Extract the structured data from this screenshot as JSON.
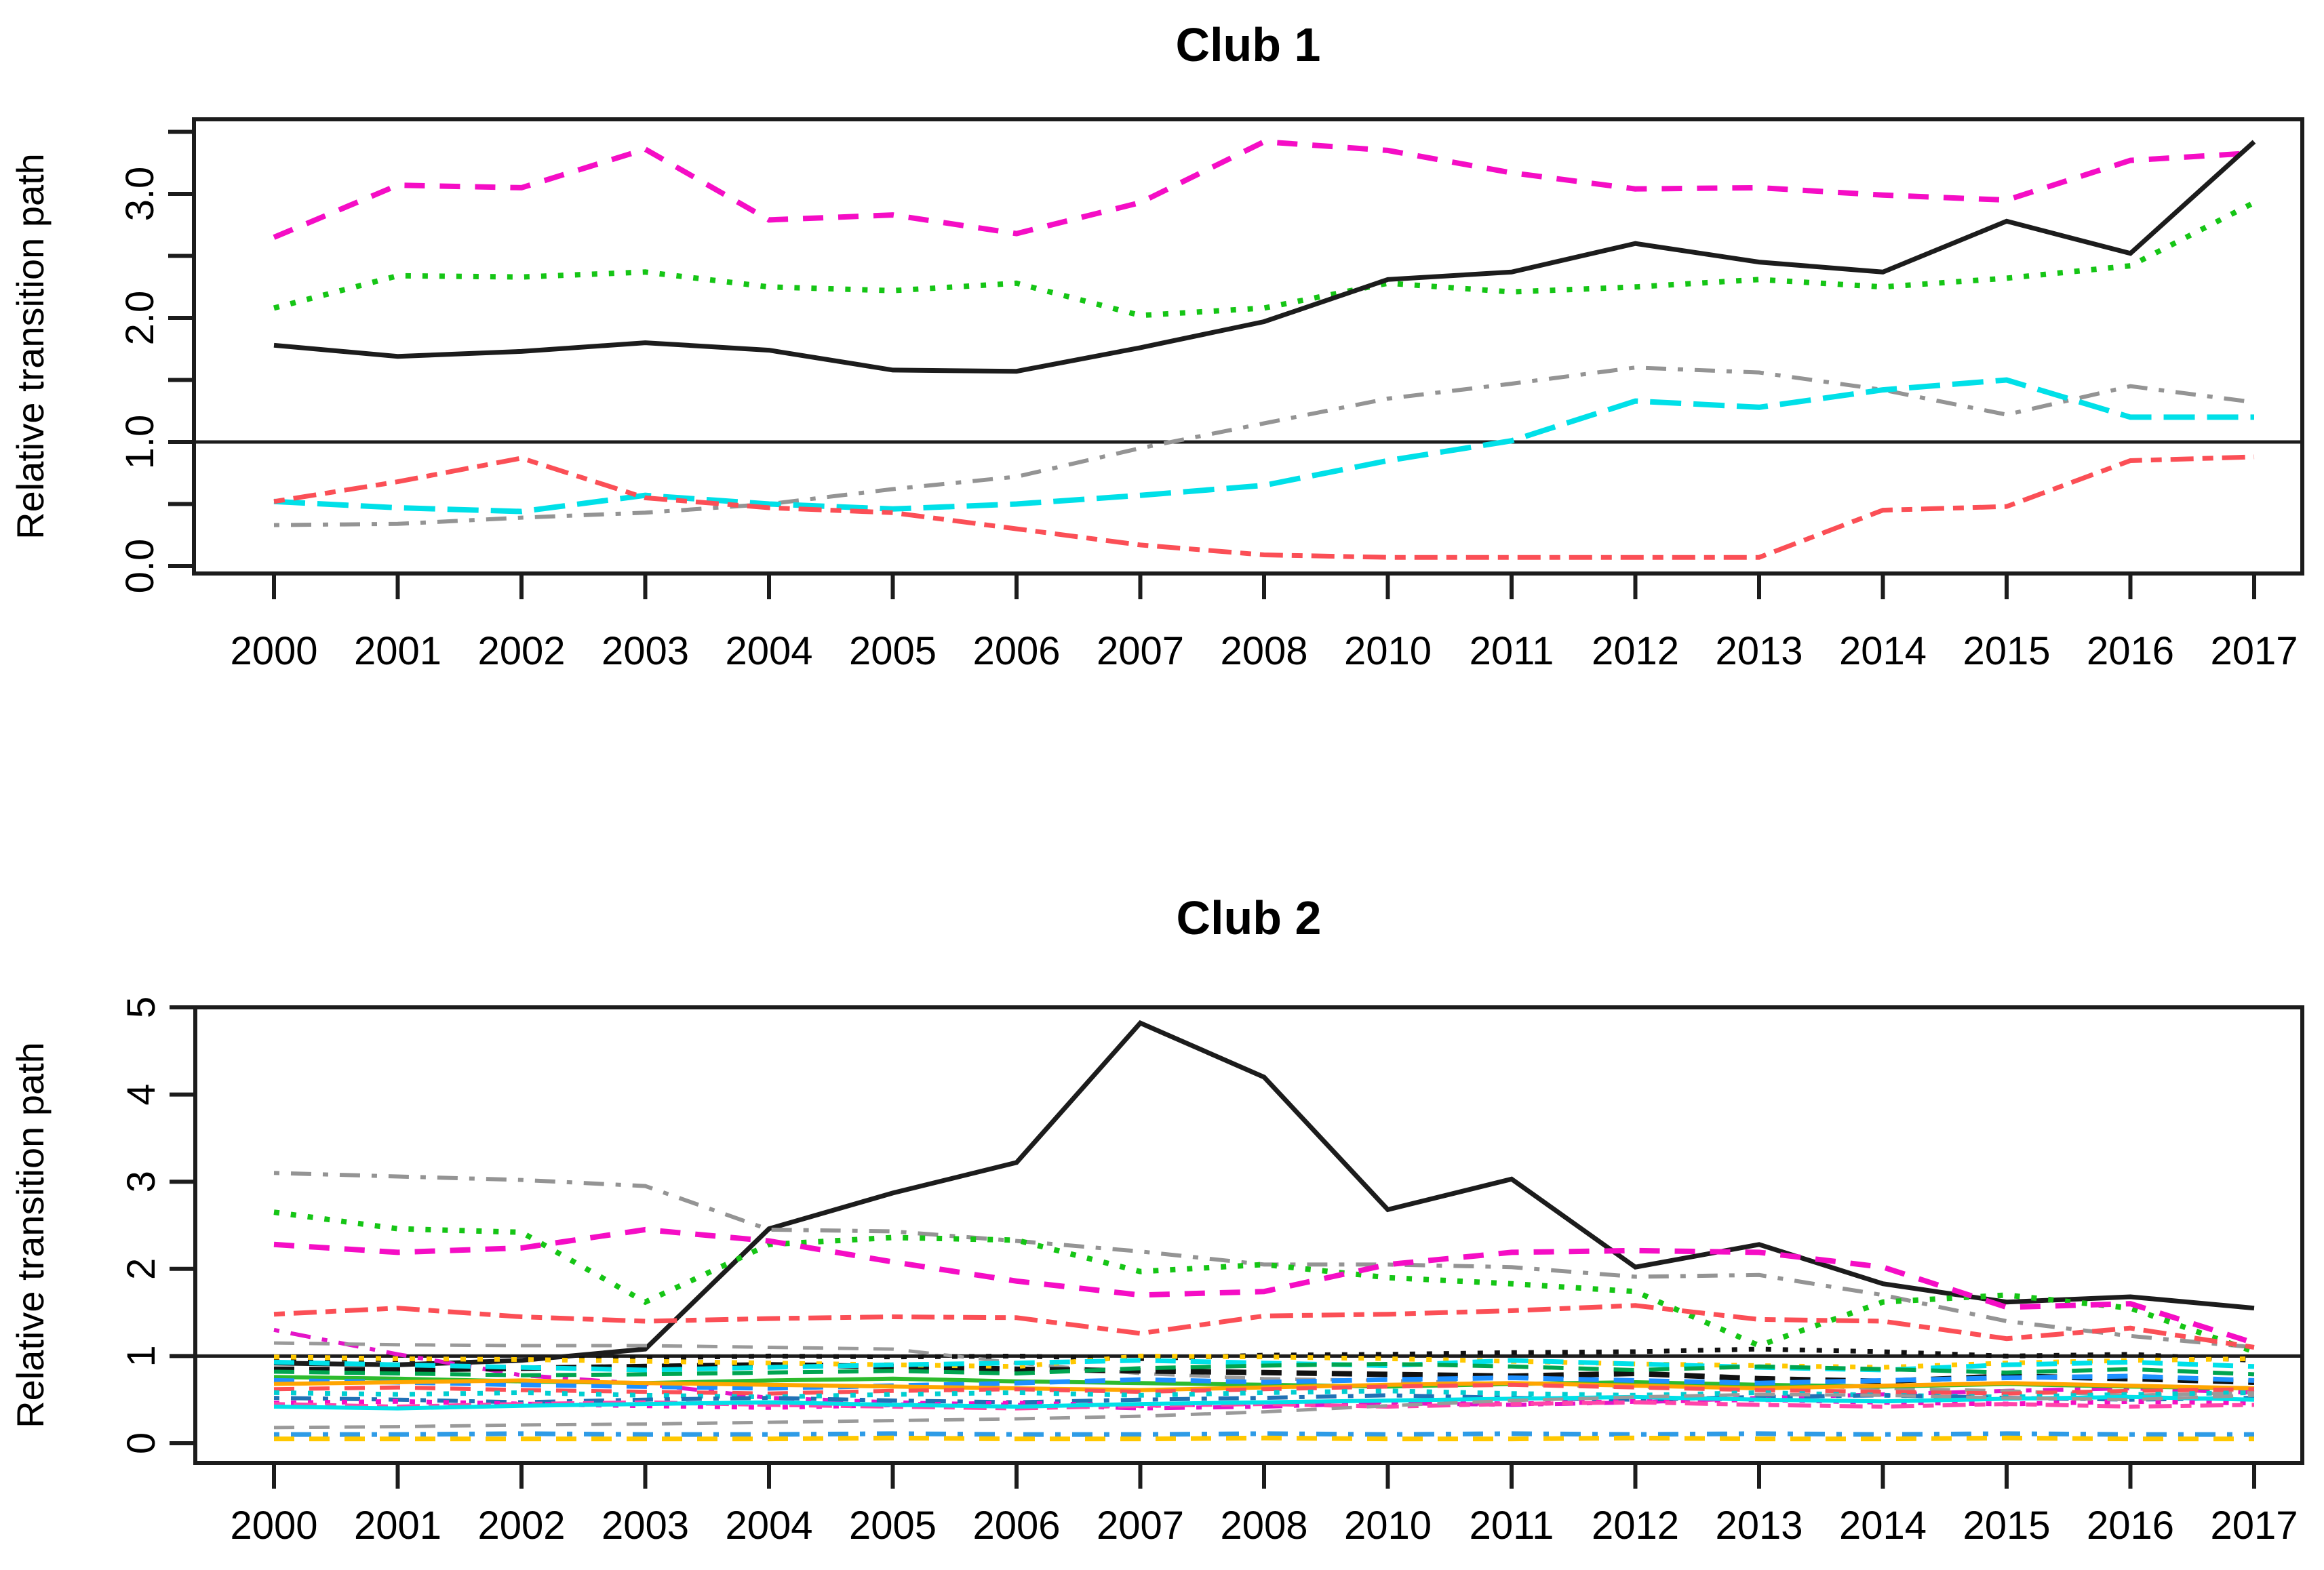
{
  "page": {
    "background": "#ffffff"
  },
  "chart_data": [
    {
      "type": "line",
      "title": "Club 1",
      "ylabel": "Relative transition path",
      "xlabel": "",
      "grid": false,
      "legend": "none",
      "ref_line_y": 1.0,
      "ylim": [
        -0.06,
        3.6
      ],
      "x_labels": [
        "2000",
        "2001",
        "2002",
        "2003",
        "2004",
        "2005",
        "2006",
        "2007",
        "2008",
        "2010",
        "2011",
        "2012",
        "2013",
        "2014",
        "2015",
        "2016",
        "2017"
      ],
      "y_ticks": [
        {
          "v": 0.0,
          "label": "0.0"
        },
        {
          "v": 0.5,
          "label": ""
        },
        {
          "v": 1.0,
          "label": "1.0"
        },
        {
          "v": 1.5,
          "label": ""
        },
        {
          "v": 2.0,
          "label": "2.0"
        },
        {
          "v": 2.5,
          "label": ""
        },
        {
          "v": 3.0,
          "label": "3.0"
        },
        {
          "v": 3.5,
          "label": ""
        }
      ],
      "series": [
        {
          "name": "club1-magenta-dashed",
          "color": "#F50DC5",
          "style": "dashed",
          "width": 8,
          "values": [
            2.65,
            3.07,
            3.05,
            3.36,
            2.79,
            2.83,
            2.68,
            2.93,
            3.42,
            3.35,
            3.17,
            3.04,
            3.05,
            2.99,
            2.95,
            3.27,
            3.33
          ]
        },
        {
          "name": "club1-green-dotted",
          "color": "#15C515",
          "style": "dotted",
          "width": 8,
          "values": [
            2.08,
            2.34,
            2.33,
            2.37,
            2.25,
            2.22,
            2.28,
            2.02,
            2.08,
            2.28,
            2.21,
            2.25,
            2.31,
            2.25,
            2.32,
            2.42,
            2.93
          ]
        },
        {
          "name": "club1-black-solid",
          "color": "#1c1c1c",
          "style": "solid",
          "width": 7,
          "values": [
            1.78,
            1.69,
            1.73,
            1.8,
            1.74,
            1.58,
            1.57,
            1.76,
            1.97,
            2.31,
            2.37,
            2.6,
            2.45,
            2.37,
            2.78,
            2.52,
            3.42
          ]
        },
        {
          "name": "club1-gray-dashdot",
          "color": "#949494",
          "style": "dotdash",
          "width": 6,
          "values": [
            0.33,
            0.34,
            0.39,
            0.43,
            0.5,
            0.62,
            0.72,
            0.95,
            1.15,
            1.35,
            1.47,
            1.6,
            1.56,
            1.42,
            1.22,
            1.45,
            1.32
          ]
        },
        {
          "name": "club1-cyan-longdash",
          "color": "#00E0E8",
          "style": "longdash",
          "width": 8,
          "values": [
            0.52,
            0.47,
            0.44,
            0.57,
            0.5,
            0.46,
            0.5,
            0.57,
            0.65,
            0.85,
            1.01,
            1.33,
            1.28,
            1.42,
            1.5,
            1.2,
            1.2
          ]
        },
        {
          "name": "club1-red-dashdot",
          "color": "#FB4F56",
          "style": "twodash",
          "width": 7,
          "values": [
            0.52,
            0.68,
            0.87,
            0.55,
            0.47,
            0.43,
            0.3,
            0.17,
            0.09,
            0.07,
            0.07,
            0.07,
            0.07,
            0.45,
            0.48,
            0.85,
            0.88
          ]
        }
      ]
    },
    {
      "type": "line",
      "title": "Club 2",
      "ylabel": "Relative transition path",
      "xlabel": "",
      "grid": false,
      "legend": "none",
      "ref_line_y": 1.0,
      "ylim": [
        -0.22,
        5.0
      ],
      "x_labels": [
        "2000",
        "2001",
        "2002",
        "2003",
        "2004",
        "2005",
        "2006",
        "2007",
        "2008",
        "2010",
        "2011",
        "2012",
        "2013",
        "2014",
        "2015",
        "2016",
        "2017"
      ],
      "y_ticks": [
        {
          "v": 0,
          "label": "0"
        },
        {
          "v": 1,
          "label": "1"
        },
        {
          "v": 2,
          "label": "2"
        },
        {
          "v": 3,
          "label": "3"
        },
        {
          "v": 4,
          "label": "4"
        },
        {
          "v": 5,
          "label": "5"
        }
      ],
      "series": [
        {
          "name": "club2-black-solid",
          "color": "#1c1c1c",
          "style": "solid",
          "width": 7,
          "values": [
            0.92,
            0.9,
            0.95,
            1.08,
            2.46,
            2.87,
            3.22,
            4.82,
            4.2,
            2.68,
            3.03,
            2.02,
            2.28,
            1.83,
            1.62,
            1.68,
            1.55
          ]
        },
        {
          "name": "club2-gray-dashdot",
          "color": "#949494",
          "style": "dotdash",
          "width": 6,
          "values": [
            3.1,
            3.06,
            3.02,
            2.95,
            2.45,
            2.43,
            2.32,
            2.2,
            2.05,
            2.05,
            2.02,
            1.91,
            1.93,
            1.7,
            1.4,
            1.23,
            1.1
          ]
        },
        {
          "name": "club2-green-dotted",
          "color": "#15C515",
          "style": "dotted",
          "width": 8,
          "values": [
            2.65,
            2.46,
            2.42,
            1.62,
            2.28,
            2.36,
            2.33,
            1.97,
            2.05,
            1.9,
            1.83,
            1.74,
            1.12,
            1.62,
            1.7,
            1.55,
            1.05
          ]
        },
        {
          "name": "club2-magenta-dashed",
          "color": "#F50DC5",
          "style": "dashed",
          "width": 8,
          "values": [
            2.28,
            2.19,
            2.24,
            2.45,
            2.32,
            2.08,
            1.86,
            1.7,
            1.74,
            2.05,
            2.19,
            2.21,
            2.19,
            2.02,
            1.56,
            1.6,
            1.15
          ]
        },
        {
          "name": "club2-red-dashdot",
          "color": "#FB4F56",
          "style": "twodash",
          "width": 7,
          "values": [
            1.48,
            1.55,
            1.45,
            1.4,
            1.43,
            1.45,
            1.44,
            1.26,
            1.46,
            1.48,
            1.52,
            1.58,
            1.42,
            1.4,
            1.2,
            1.32,
            1.1
          ]
        },
        {
          "name": "club2-magenta-dashdot-desc",
          "color": "#E414C8",
          "style": "dotdash",
          "width": 6,
          "values": [
            1.3,
            1.02,
            0.78,
            0.68,
            0.52,
            0.47,
            0.44,
            0.4,
            0.42,
            0.46,
            0.44,
            0.47,
            0.52,
            0.56,
            0.6,
            0.63,
            0.58
          ]
        },
        {
          "name": "club2-gray-dashed-high",
          "color": "#9a9a9a",
          "style": "dashed",
          "width": 5,
          "values": [
            1.15,
            1.13,
            1.12,
            1.12,
            1.1,
            1.08,
            0.92,
            0.8,
            0.74,
            0.72,
            0.68,
            0.64,
            0.67,
            0.63,
            0.6,
            0.55,
            0.58
          ]
        },
        {
          "name": "club2-black-dotted",
          "color": "#111111",
          "style": "dotted",
          "width": 7,
          "values": [
            0.97,
            0.96,
            0.97,
            0.98,
            1.0,
            0.99,
            1.0,
            0.97,
            1.01,
            1.02,
            1.04,
            1.05,
            1.08,
            1.05,
            1.0,
            1.02,
            0.95
          ]
        },
        {
          "name": "club2-black-dashed",
          "color": "#111111",
          "style": "dashed",
          "width": 8,
          "values": [
            0.85,
            0.84,
            0.86,
            0.88,
            0.9,
            0.88,
            0.85,
            0.83,
            0.81,
            0.79,
            0.77,
            0.8,
            0.74,
            0.71,
            0.77,
            0.74,
            0.7
          ]
        },
        {
          "name": "club2-gold-dotted",
          "color": "#FFC800",
          "style": "dotted",
          "width": 7,
          "values": [
            0.99,
            0.97,
            0.96,
            0.94,
            0.92,
            0.9,
            0.88,
            1.0,
            0.99,
            0.97,
            0.94,
            0.91,
            0.89,
            0.87,
            0.92,
            0.95,
            0.97
          ]
        },
        {
          "name": "club2-cyan-dashed",
          "color": "#00E0E8",
          "style": "dashed",
          "width": 7,
          "values": [
            0.93,
            0.9,
            0.87,
            0.84,
            0.87,
            0.9,
            0.92,
            0.95,
            0.92,
            0.89,
            0.95,
            0.91,
            0.87,
            0.84,
            0.9,
            0.93,
            0.88
          ]
        },
        {
          "name": "club2-darkgreen-dashed",
          "color": "#00A550",
          "style": "dashed",
          "width": 6,
          "values": [
            0.82,
            0.8,
            0.78,
            0.79,
            0.81,
            0.83,
            0.8,
            0.86,
            0.89,
            0.91,
            0.88,
            0.84,
            0.88,
            0.85,
            0.81,
            0.85,
            0.79
          ]
        },
        {
          "name": "club2-green-solid",
          "color": "#2DBB2D",
          "style": "solid",
          "width": 6,
          "values": [
            0.76,
            0.74,
            0.71,
            0.69,
            0.72,
            0.74,
            0.71,
            0.69,
            0.67,
            0.65,
            0.68,
            0.7,
            0.67,
            0.65,
            0.68,
            0.65,
            0.63
          ]
        },
        {
          "name": "club2-blue-dashed",
          "color": "#1E90FF",
          "style": "dashed",
          "width": 7,
          "values": [
            0.72,
            0.7,
            0.67,
            0.65,
            0.63,
            0.66,
            0.69,
            0.73,
            0.7,
            0.73,
            0.75,
            0.72,
            0.69,
            0.72,
            0.75,
            0.77,
            0.72
          ]
        },
        {
          "name": "club2-orange-solid",
          "color": "#FFA500",
          "style": "solid",
          "width": 6,
          "values": [
            0.68,
            0.7,
            0.72,
            0.69,
            0.67,
            0.65,
            0.63,
            0.61,
            0.64,
            0.67,
            0.69,
            0.66,
            0.63,
            0.66,
            0.69,
            0.66,
            0.63
          ]
        },
        {
          "name": "club2-red-dashed-low",
          "color": "#FB4F56",
          "style": "dashed",
          "width": 6,
          "values": [
            0.62,
            0.64,
            0.61,
            0.59,
            0.57,
            0.6,
            0.62,
            0.59,
            0.62,
            0.65,
            0.67,
            0.64,
            0.61,
            0.59,
            0.57,
            0.6,
            0.62
          ]
        },
        {
          "name": "club2-cyan-dotted",
          "color": "#00CED1",
          "style": "dotted",
          "width": 7,
          "values": [
            0.58,
            0.56,
            0.58,
            0.55,
            0.53,
            0.56,
            0.58,
            0.55,
            0.58,
            0.6,
            0.57,
            0.55,
            0.58,
            0.55,
            0.53,
            0.56,
            0.58
          ]
        },
        {
          "name": "club2-blue-dashdot",
          "color": "#2171B5",
          "style": "dotdash",
          "width": 6,
          "values": [
            0.52,
            0.5,
            0.47,
            0.5,
            0.52,
            0.49,
            0.47,
            0.5,
            0.52,
            0.55,
            0.52,
            0.5,
            0.53,
            0.55,
            0.52,
            0.5,
            0.52
          ]
        },
        {
          "name": "club2-magenta-dotted",
          "color": "#F50DC5",
          "style": "dotted",
          "width": 7,
          "values": [
            0.46,
            0.48,
            0.45,
            0.43,
            0.41,
            0.44,
            0.46,
            0.43,
            0.46,
            0.48,
            0.45,
            0.48,
            0.5,
            0.47,
            0.45,
            0.48,
            0.46
          ]
        },
        {
          "name": "club2-pink-dashdot",
          "color": "#FF44AA",
          "style": "twodash",
          "width": 6,
          "values": [
            0.45,
            0.42,
            0.45,
            0.47,
            0.44,
            0.42,
            0.4,
            0.43,
            0.45,
            0.42,
            0.45,
            0.47,
            0.44,
            0.42,
            0.45,
            0.42,
            0.44
          ]
        },
        {
          "name": "club2-cyan-solid",
          "color": "#00E0E8",
          "style": "solid",
          "width": 6,
          "values": [
            0.42,
            0.4,
            0.43,
            0.45,
            0.47,
            0.44,
            0.42,
            0.45,
            0.47,
            0.49,
            0.51,
            0.53,
            0.5,
            0.48,
            0.51,
            0.53,
            0.5
          ]
        },
        {
          "name": "club2-gray-dashed-rising",
          "color": "#9a9a9a",
          "style": "dashed",
          "width": 5,
          "values": [
            0.18,
            0.19,
            0.21,
            0.22,
            0.24,
            0.26,
            0.28,
            0.31,
            0.36,
            0.43,
            0.49,
            0.53,
            0.56,
            0.55,
            0.52,
            0.5,
            0.55
          ]
        },
        {
          "name": "club2-steelblue-dashdot-low",
          "color": "#2E9BE6",
          "style": "dotdash",
          "width": 7,
          "values": [
            0.1,
            0.1,
            0.11,
            0.1,
            0.1,
            0.11,
            0.1,
            0.1,
            0.11,
            0.1,
            0.11,
            0.1,
            0.11,
            0.1,
            0.11,
            0.1,
            0.1
          ]
        },
        {
          "name": "club2-gold-dashed-low",
          "color": "#FFC800",
          "style": "dashed",
          "width": 7,
          "values": [
            0.05,
            0.05,
            0.05,
            0.05,
            0.05,
            0.06,
            0.05,
            0.05,
            0.06,
            0.05,
            0.05,
            0.06,
            0.05,
            0.05,
            0.06,
            0.05,
            0.05
          ]
        }
      ]
    }
  ]
}
